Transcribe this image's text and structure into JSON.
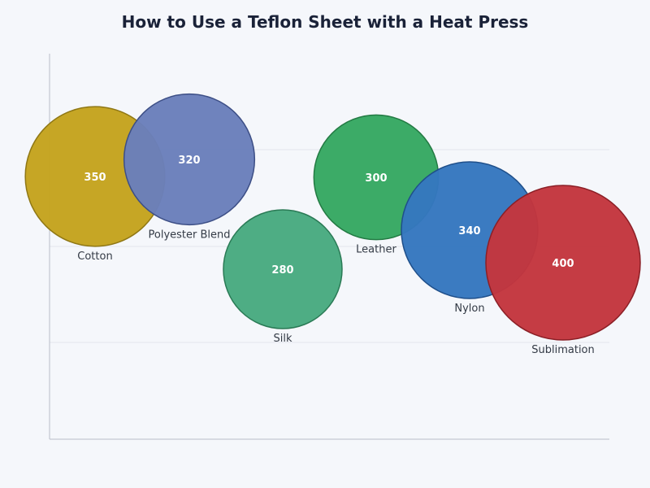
{
  "chart_data": {
    "type": "bubble",
    "title": "How to Use a Teflon Sheet with a Heat Press",
    "xlabel": "",
    "ylabel": "",
    "grid": true,
    "points": [
      {
        "category": "Cotton",
        "value": 350,
        "color": "#c4a31e",
        "stroke": "#8f7714"
      },
      {
        "category": "Polyester Blend",
        "value": 320,
        "color": "#6a7fbb",
        "stroke": "#3d4f86"
      },
      {
        "category": "Silk",
        "value": 280,
        "color": "#48aa80",
        "stroke": "#2a7a55"
      },
      {
        "category": "Leather",
        "value": 300,
        "color": "#36a862",
        "stroke": "#237a43"
      },
      {
        "category": "Nylon",
        "value": 340,
        "color": "#3577bf",
        "stroke": "#1f4f8a"
      },
      {
        "category": "Sublimation",
        "value": 400,
        "color": "#c3363e",
        "stroke": "#8b1f26"
      }
    ]
  }
}
